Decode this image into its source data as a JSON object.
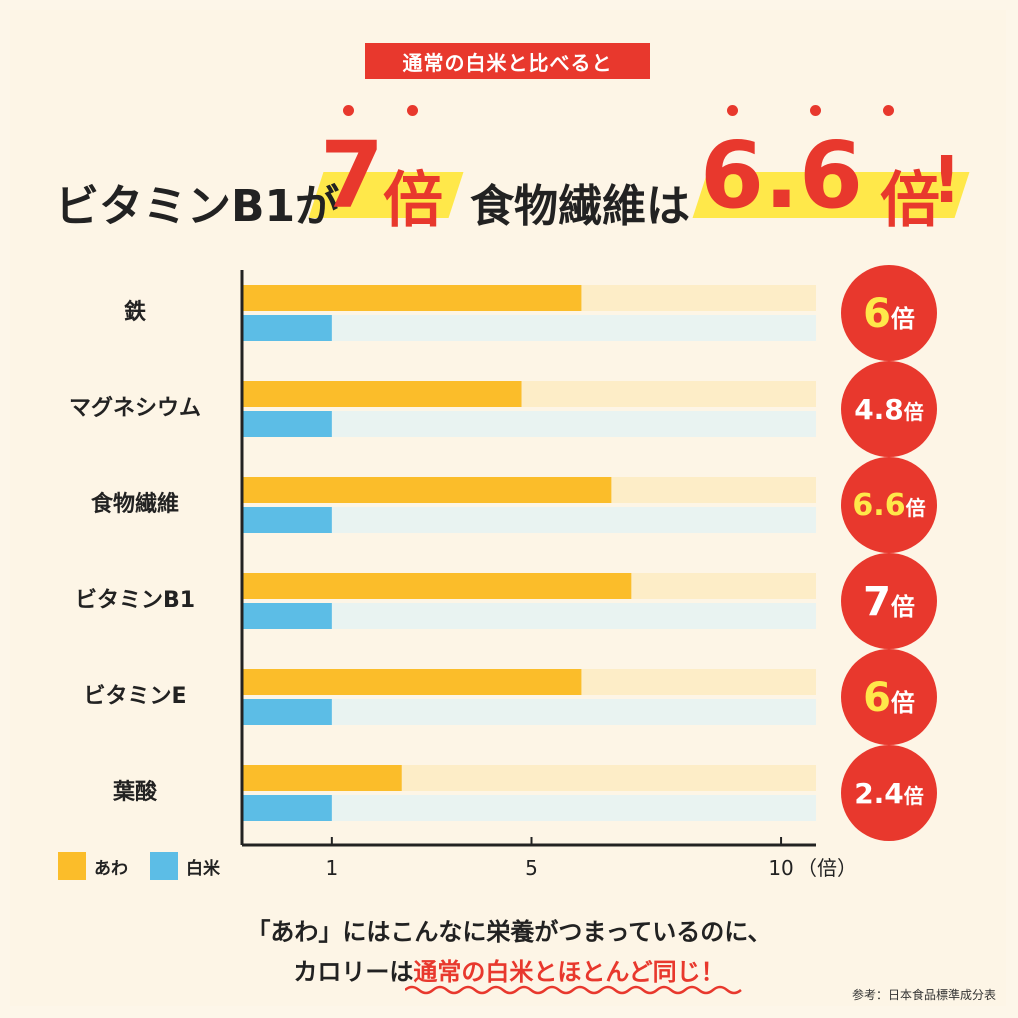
{
  "tag_text": "通常の白米と比べると",
  "headline": {
    "part1": "ビタミンB1が",
    "num1": "7",
    "unit1": "倍",
    "part2": "食物繊維は",
    "num2": "6.6",
    "unit2": "倍",
    "exclaim": "!"
  },
  "colors": {
    "awa": "#fbbd2a",
    "awa_track": "#fdedc7",
    "rice": "#5cbde6",
    "rice_track": "#e9f3f1",
    "badge": "#e8382d",
    "highlight": "#ffe84a"
  },
  "chart_data": {
    "type": "bar",
    "orientation": "horizontal",
    "categories": [
      "鉄",
      "マグネシウム",
      "食物繊維",
      "ビタミンB1",
      "ビタミンE",
      "葉酸"
    ],
    "series": [
      {
        "name": "あわ",
        "values": [
          6,
          4.8,
          6.6,
          7,
          6,
          2.4
        ]
      },
      {
        "name": "白米",
        "values": [
          1,
          1,
          1,
          1,
          1,
          1
        ]
      }
    ],
    "xlim": [
      -0.8,
      10.7
    ],
    "x_ticks": [
      1,
      5,
      10
    ],
    "x_tick_labels": [
      "1",
      "5",
      "10"
    ],
    "x_unit": "（倍）",
    "badges": [
      {
        "num": "6",
        "unit": "倍"
      },
      {
        "num": "4.8",
        "unit": "倍"
      },
      {
        "num": "6.6",
        "unit": "倍"
      },
      {
        "num": "7",
        "unit": "倍"
      },
      {
        "num": "6",
        "unit": "倍"
      },
      {
        "num": "2.4",
        "unit": "倍"
      }
    ],
    "legend": [
      {
        "label": "あわ"
      },
      {
        "label": "白米"
      }
    ]
  },
  "bottom": {
    "line1": "「あわ」にはこんなに栄養がつまっているのに、",
    "line2_prefix": "カロリーは",
    "line2_highlight": "通常の白米とほとんど同じ！"
  },
  "source": "参考：日本食品標準成分表"
}
